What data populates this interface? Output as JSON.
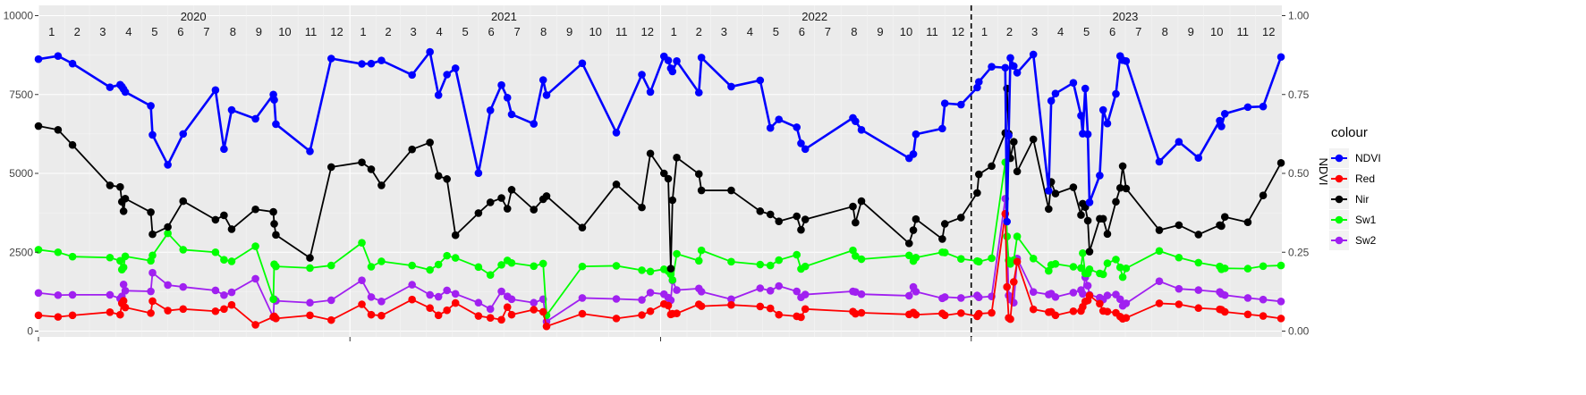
{
  "chart_data": {
    "type": "line",
    "y_left": {
      "min": 0,
      "max": 10000,
      "ticks": [
        0,
        2500,
        5000,
        7500,
        10000
      ],
      "tick_labels": [
        "0",
        "2500",
        "5000",
        "7500",
        "10000"
      ]
    },
    "y_right": {
      "label": "NDVI",
      "min": 0,
      "max": 1,
      "ticks": [
        0,
        0.25,
        0.5,
        0.75,
        1
      ],
      "tick_labels": [
        "0.00",
        "0.25",
        "0.50",
        "0.75",
        "1.00"
      ]
    },
    "x_range": [
      "2020-01-01",
      "2023-12-31"
    ],
    "year_labels": [
      {
        "label": "2020",
        "date": "2020-07-01"
      },
      {
        "label": "2021",
        "date": "2021-07-01"
      },
      {
        "label": "2022",
        "date": "2022-07-01"
      },
      {
        "label": "2023",
        "date": "2023-07-01"
      }
    ],
    "month_labels": [
      "1",
      "2",
      "3",
      "4",
      "5",
      "6",
      "7",
      "8",
      "9",
      "10",
      "11",
      "12"
    ],
    "vline_date": "2023-01-01",
    "grid": true,
    "legend": {
      "title": "colour",
      "position": "right",
      "entries": [
        "NDVI",
        "Red",
        "Nir",
        "Sw1",
        "Sw2"
      ]
    },
    "colors": {
      "NDVI": "#0000ff",
      "Red": "#ff0000",
      "Nir": "#000000",
      "Sw1": "#00ff00",
      "Sw2": "#a020f0"
    },
    "dates": [
      "2020-01-01",
      "2020-01-24",
      "2020-02-10",
      "2020-03-25",
      "2020-04-06",
      "2020-04-08",
      "2020-04-10",
      "2020-04-12",
      "2020-05-12",
      "2020-05-14",
      "2020-06-01",
      "2020-06-19",
      "2020-07-27",
      "2020-08-06",
      "2020-08-15",
      "2020-09-12",
      "2020-10-03",
      "2020-10-04",
      "2020-10-06",
      "2020-11-15",
      "2020-12-10",
      "2021-01-15",
      "2021-01-26",
      "2021-02-07",
      "2021-03-15",
      "2021-04-05",
      "2021-04-15",
      "2021-04-25",
      "2021-05-05",
      "2021-06-01",
      "2021-06-15",
      "2021-06-28",
      "2021-07-05",
      "2021-07-10",
      "2021-08-05",
      "2021-08-16",
      "2021-08-20",
      "2021-10-01",
      "2021-11-10",
      "2021-12-10",
      "2021-12-20",
      "2022-01-05",
      "2022-01-10",
      "2022-01-13",
      "2022-01-15",
      "2022-01-20",
      "2022-02-15",
      "2022-02-18",
      "2022-03-25",
      "2022-04-28",
      "2022-05-10",
      "2022-05-20",
      "2022-06-10",
      "2022-06-15",
      "2022-06-20",
      "2022-08-15",
      "2022-08-18",
      "2022-08-25",
      "2022-10-20",
      "2022-10-25",
      "2022-10-28",
      "2022-11-28",
      "2022-12-01",
      "2022-12-20",
      "2023-01-08",
      "2023-01-10",
      "2023-01-25",
      "2023-02-10",
      "2023-02-12",
      "2023-02-14",
      "2023-02-16",
      "2023-02-20",
      "2023-02-24",
      "2023-03-15",
      "2023-04-02",
      "2023-04-05",
      "2023-04-10",
      "2023-05-01",
      "2023-05-10",
      "2023-05-12",
      "2023-05-15",
      "2023-05-18",
      "2023-05-20",
      "2023-06-01",
      "2023-06-05",
      "2023-06-10",
      "2023-06-20",
      "2023-06-25",
      "2023-06-28",
      "2023-07-02",
      "2023-08-10",
      "2023-09-02",
      "2023-09-25",
      "2023-10-20",
      "2023-10-22",
      "2023-10-26",
      "2023-11-22",
      "2023-12-10",
      "2023-12-31"
    ],
    "series": [
      {
        "name": "NDVI",
        "axis": "right",
        "values": [
          0.862,
          0.872,
          0.848,
          0.773,
          0.781,
          0.775,
          0.767,
          0.758,
          0.714,
          0.622,
          0.527,
          0.625,
          0.764,
          0.577,
          0.701,
          0.673,
          0.75,
          0.733,
          0.656,
          0.57,
          0.864,
          0.847,
          0.848,
          0.858,
          0.812,
          0.885,
          0.748,
          0.813,
          0.833,
          0.501,
          0.7,
          0.78,
          0.74,
          0.687,
          0.657,
          0.796,
          0.748,
          0.849,
          0.629,
          0.813,
          0.758,
          0.871,
          0.858,
          0.833,
          0.823,
          0.856,
          0.756,
          0.867,
          0.775,
          0.795,
          0.644,
          0.671,
          0.646,
          0.595,
          0.577,
          0.676,
          0.665,
          0.638,
          0.548,
          0.561,
          0.624,
          0.642,
          0.722,
          0.718,
          0.772,
          0.79,
          0.838,
          0.835,
          0.347,
          0.62,
          0.866,
          0.84,
          0.819,
          0.877,
          0.445,
          0.73,
          0.753,
          0.787,
          0.683,
          0.626,
          0.769,
          0.624,
          0.408,
          0.493,
          0.701,
          0.658,
          0.752,
          0.872,
          0.859,
          0.856,
          0.537,
          0.6,
          0.549,
          0.667,
          0.649,
          0.689,
          0.71,
          0.712,
          0.869
        ]
      },
      {
        "name": "Red",
        "axis": "left",
        "values": [
          500,
          450,
          500,
          600,
          520,
          880,
          960,
          750,
          570,
          950,
          650,
          700,
          630,
          700,
          830,
          200,
          450,
          470,
          400,
          500,
          350,
          850,
          520,
          490,
          1000,
          730,
          500,
          660,
          890,
          480,
          420,
          360,
          760,
          520,
          680,
          610,
          150,
          550,
          400,
          510,
          630,
          860,
          810,
          530,
          550,
          560,
          850,
          790,
          830,
          780,
          720,
          520,
          470,
          440,
          700,
          620,
          550,
          580,
          530,
          590,
          520,
          560,
          500,
          570,
          470,
          550,
          580,
          3720,
          1400,
          420,
          380,
          1560,
          2200,
          690,
          600,
          610,
          500,
          630,
          640,
          770,
          940,
          970,
          1130,
          870,
          640,
          620,
          580,
          460,
          390,
          420,
          880,
          850,
          730,
          690,
          680,
          610,
          530,
          480,
          400
        ]
      },
      {
        "name": "Nir",
        "axis": "left",
        "values": [
          6500,
          6380,
          5900,
          4620,
          4570,
          4100,
          3800,
          4200,
          3770,
          3070,
          3300,
          4120,
          3530,
          3670,
          3230,
          3860,
          3780,
          3400,
          3050,
          2320,
          5200,
          5350,
          5130,
          4620,
          5760,
          5980,
          4920,
          4820,
          3040,
          3740,
          4080,
          4220,
          3880,
          4480,
          3850,
          4180,
          4280,
          3280,
          4650,
          3920,
          5630,
          5000,
          4830,
          1980,
          4150,
          5500,
          4980,
          4460,
          4460,
          3800,
          3700,
          3480,
          3640,
          3210,
          3540,
          3950,
          3440,
          4120,
          2780,
          3200,
          3550,
          2920,
          3400,
          3600,
          4380,
          4970,
          5230,
          6280,
          7690,
          6260,
          5480,
          6000,
          5060,
          6080,
          3870,
          4730,
          4360,
          4560,
          3680,
          4040,
          3930,
          3500,
          2520,
          3560,
          3560,
          3080,
          4100,
          4540,
          5230,
          4520,
          3200,
          3360,
          3060,
          3360,
          3330,
          3620,
          3450,
          4300,
          5330
        ]
      },
      {
        "name": "Sw1",
        "axis": "left",
        "values": [
          2580,
          2500,
          2360,
          2330,
          2230,
          1950,
          2020,
          2370,
          2230,
          2400,
          3100,
          2580,
          2500,
          2260,
          2210,
          2690,
          1010,
          2120,
          2050,
          2000,
          2080,
          2800,
          2040,
          2210,
          2080,
          1940,
          2110,
          2390,
          2320,
          2030,
          1780,
          2100,
          2240,
          2160,
          2060,
          2140,
          500,
          2050,
          2070,
          1930,
          1890,
          1960,
          1900,
          1800,
          1620,
          2450,
          2230,
          2560,
          2200,
          2110,
          2080,
          2250,
          2420,
          1970,
          2050,
          2560,
          2380,
          2280,
          2400,
          2220,
          2330,
          2500,
          2490,
          2290,
          2220,
          2200,
          2310,
          5350,
          3000,
          2240,
          2130,
          2250,
          3000,
          2300,
          1910,
          2100,
          2130,
          2040,
          2000,
          2470,
          1830,
          1830,
          1960,
          1830,
          1800,
          2150,
          2270,
          2020,
          1710,
          1990,
          2540,
          2330,
          2170,
          2050,
          1960,
          1990,
          1980,
          2060,
          2080
        ]
      },
      {
        "name": "Sw2",
        "axis": "left",
        "values": [
          1210,
          1140,
          1150,
          1150,
          1030,
          1100,
          1480,
          1280,
          1260,
          1850,
          1460,
          1400,
          1290,
          1140,
          1230,
          1660,
          440,
          1010,
          960,
          900,
          980,
          1610,
          1080,
          940,
          1470,
          1150,
          1090,
          1290,
          1180,
          900,
          700,
          1260,
          1100,
          1010,
          900,
          1010,
          300,
          1050,
          1020,
          990,
          1220,
          1170,
          1060,
          980,
          1600,
          1300,
          1350,
          1250,
          1010,
          1360,
          1280,
          1430,
          1260,
          1070,
          1160,
          1260,
          1240,
          1170,
          1120,
          1400,
          1250,
          1040,
          1080,
          1050,
          1130,
          1070,
          1100,
          4200,
          3000,
          1130,
          1000,
          900,
          2300,
          1240,
          1160,
          1190,
          1080,
          1220,
          1300,
          1180,
          1700,
          1440,
          1150,
          1060,
          1000,
          1130,
          1160,
          1010,
          800,
          880,
          1580,
          1340,
          1300,
          1240,
          1180,
          1140,
          1050,
          1000,
          940
        ]
      }
    ]
  }
}
